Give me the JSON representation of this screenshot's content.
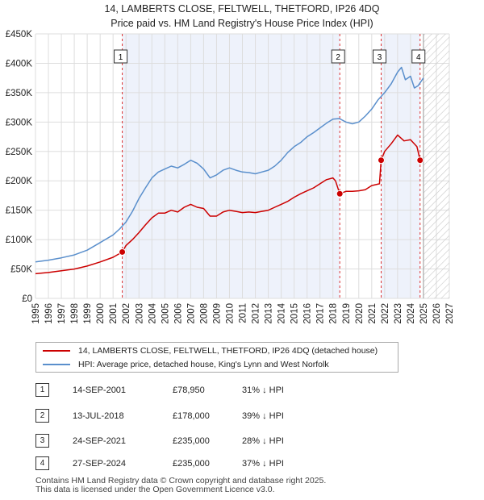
{
  "chart_data": {
    "type": "line",
    "title": "14, LAMBERTS CLOSE, FELTWELL, THETFORD, IP26 4DQ",
    "subtitle": "Price paid vs. HM Land Registry's House Price Index (HPI)",
    "xlabel": "",
    "ylabel": "",
    "xlim": [
      1995,
      2027
    ],
    "ylim": [
      0,
      450000
    ],
    "x_ticks": [
      "1995",
      "1996",
      "1997",
      "1998",
      "1999",
      "2000",
      "2001",
      "2002",
      "2003",
      "2004",
      "2005",
      "2006",
      "2007",
      "2008",
      "2009",
      "2010",
      "2011",
      "2012",
      "2013",
      "2014",
      "2015",
      "2016",
      "2017",
      "2018",
      "2019",
      "2020",
      "2021",
      "2022",
      "2023",
      "2024",
      "2025",
      "2026",
      "2027"
    ],
    "y_ticks": [
      {
        "value": 0,
        "label": "£0"
      },
      {
        "value": 50000,
        "label": "£50K"
      },
      {
        "value": 100000,
        "label": "£100K"
      },
      {
        "value": 150000,
        "label": "£150K"
      },
      {
        "value": 200000,
        "label": "£200K"
      },
      {
        "value": 250000,
        "label": "£250K"
      },
      {
        "value": 300000,
        "label": "£300K"
      },
      {
        "value": 350000,
        "label": "£350K"
      },
      {
        "value": 400000,
        "label": "£400K"
      },
      {
        "value": 450000,
        "label": "£450K"
      }
    ],
    "grid": true,
    "forecast_start": 2025.0,
    "series": [
      {
        "name": "14, LAMBERTS CLOSE, FELTWELL, THETFORD, IP26 4DQ (detached house)",
        "color": "#cc0000",
        "x": [
          1995.0,
          1996.0,
          1997.0,
          1998.0,
          1999.0,
          2000.0,
          2001.0,
          2001.71,
          2002.0,
          2002.5,
          2003.0,
          2003.5,
          2004.0,
          2004.5,
          2005.0,
          2005.5,
          2006.0,
          2006.5,
          2007.0,
          2007.5,
          2008.0,
          2008.5,
          2009.0,
          2009.5,
          2010.0,
          2010.5,
          2011.0,
          2011.5,
          2012.0,
          2012.5,
          2013.0,
          2013.5,
          2014.0,
          2014.5,
          2015.0,
          2015.5,
          2016.0,
          2016.5,
          2017.0,
          2017.5,
          2018.0,
          2018.2,
          2018.53,
          2019.0,
          2019.5,
          2020.0,
          2020.5,
          2021.0,
          2021.6,
          2021.73,
          2022.0,
          2022.5,
          2023.0,
          2023.5,
          2024.0,
          2024.5,
          2024.74
        ],
        "y": [
          42000,
          44000,
          47000,
          50000,
          55000,
          62000,
          70000,
          78950,
          90000,
          100000,
          112000,
          125000,
          137000,
          145000,
          145000,
          150000,
          147000,
          155000,
          160000,
          155000,
          153000,
          140000,
          140000,
          147000,
          150000,
          148000,
          146000,
          147000,
          146000,
          148000,
          150000,
          155000,
          160000,
          165000,
          172000,
          178000,
          183000,
          188000,
          195000,
          202000,
          205000,
          200000,
          178000,
          182000,
          182000,
          183000,
          185000,
          192000,
          195000,
          235000,
          250000,
          263000,
          278000,
          268000,
          270000,
          258000,
          235000
        ]
      },
      {
        "name": "HPI: Average price, detached house, King's Lynn and West Norfolk",
        "color": "#5a8fcc",
        "x": [
          1995.0,
          1996.0,
          1997.0,
          1998.0,
          1999.0,
          2000.0,
          2001.0,
          2001.5,
          2002.0,
          2002.5,
          2003.0,
          2003.5,
          2004.0,
          2004.5,
          2005.0,
          2005.5,
          2006.0,
          2006.5,
          2007.0,
          2007.5,
          2008.0,
          2008.5,
          2009.0,
          2009.5,
          2010.0,
          2010.5,
          2011.0,
          2011.5,
          2012.0,
          2012.5,
          2013.0,
          2013.5,
          2014.0,
          2014.5,
          2015.0,
          2015.5,
          2016.0,
          2016.5,
          2017.0,
          2017.5,
          2018.0,
          2018.5,
          2019.0,
          2019.5,
          2020.0,
          2020.5,
          2021.0,
          2021.5,
          2022.0,
          2022.5,
          2023.0,
          2023.3,
          2023.6,
          2024.0,
          2024.3,
          2024.6,
          2025.0
        ],
        "y": [
          62000,
          65000,
          69000,
          74000,
          82000,
          95000,
          108000,
          118000,
          130000,
          148000,
          170000,
          188000,
          205000,
          215000,
          220000,
          225000,
          222000,
          228000,
          235000,
          230000,
          220000,
          205000,
          210000,
          218000,
          222000,
          218000,
          215000,
          214000,
          212000,
          215000,
          218000,
          225000,
          235000,
          248000,
          258000,
          265000,
          275000,
          282000,
          290000,
          298000,
          305000,
          306000,
          300000,
          297000,
          300000,
          310000,
          322000,
          338000,
          350000,
          365000,
          385000,
          393000,
          372000,
          378000,
          358000,
          362000,
          375000
        ]
      }
    ],
    "transactions": [
      {
        "num": "1",
        "x": 2001.71,
        "y": 78950,
        "date": "14-SEP-2001",
        "price": "£78,950",
        "hpi": "31% ↓ HPI"
      },
      {
        "num": "2",
        "x": 2018.53,
        "y": 178000,
        "date": "13-JUL-2018",
        "price": "£178,000",
        "hpi": "39% ↓ HPI"
      },
      {
        "num": "3",
        "x": 2021.73,
        "y": 235000,
        "date": "24-SEP-2021",
        "price": "£235,000",
        "hpi": "28% ↓ HPI"
      },
      {
        "num": "4",
        "x": 2024.74,
        "y": 235000,
        "date": "27-SEP-2024",
        "price": "£235,000",
        "hpi": "37% ↓ HPI"
      }
    ]
  },
  "footer": {
    "line1": "Contains HM Land Registry data © Crown copyright and database right 2025.",
    "line2": "This data is licensed under the Open Government Licence v3.0."
  }
}
